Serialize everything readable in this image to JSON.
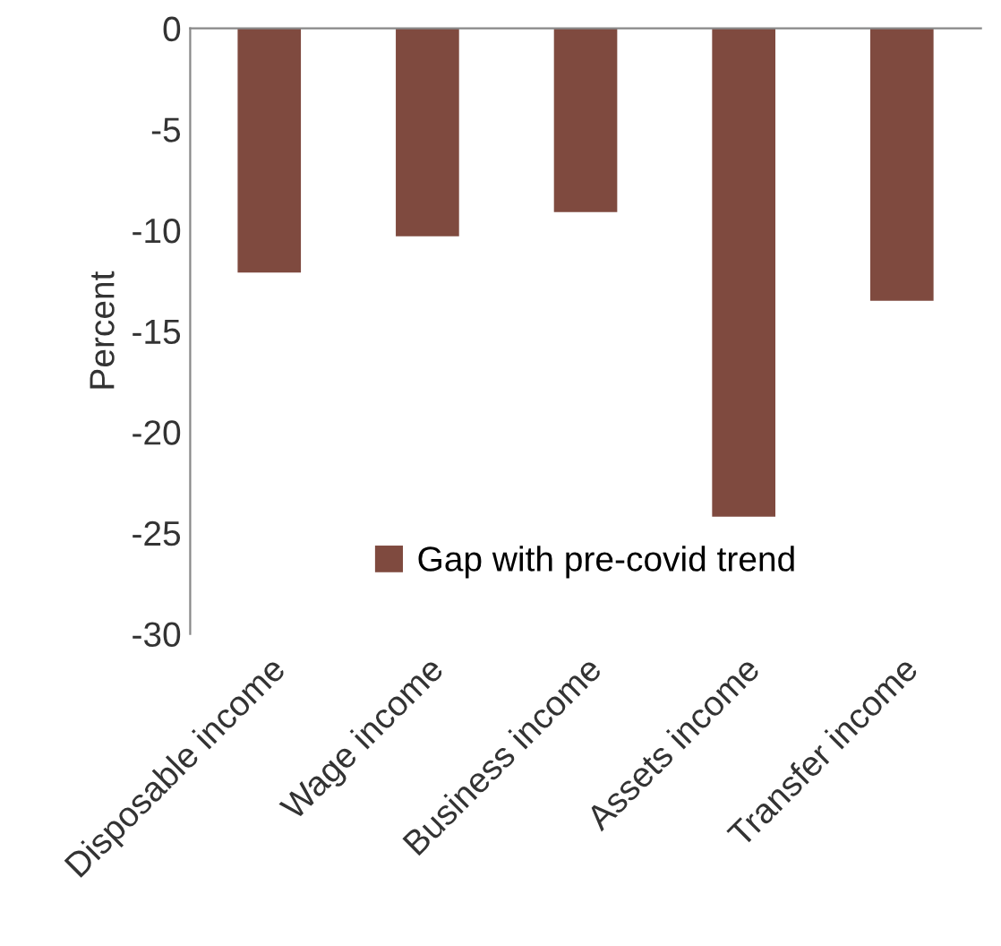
{
  "chart_data": {
    "type": "bar",
    "ylabel": "Percent",
    "categories": [
      "Disposable income",
      "Wage income",
      "Business income",
      "Assets income",
      "Transfer income"
    ],
    "series": [
      {
        "name": "Gap with pre-covid trend",
        "color": "#7f4a3f",
        "values": [
          -12.1,
          -10.3,
          -9.1,
          -24.2,
          -13.5
        ]
      }
    ],
    "ylim": [
      -30,
      0
    ],
    "yticks": [
      -30,
      -25,
      -20,
      -15,
      -10,
      -5,
      0
    ],
    "grid": false,
    "legend": "bottom"
  }
}
